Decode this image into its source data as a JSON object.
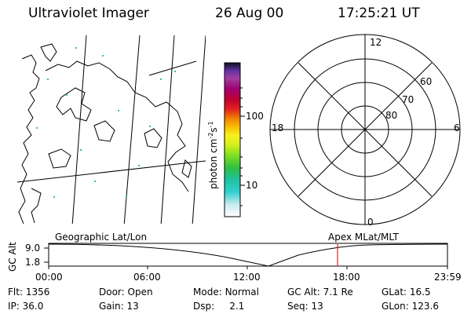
{
  "header": {
    "title": "Ultraviolet Imager",
    "date": "26 Aug 00",
    "time": "17:25:21 UT"
  },
  "color_scale": {
    "ticks": [
      "100",
      "10"
    ],
    "unit_main": "photon",
    "unit_exp1": "-2",
    "unit_exp2": "-1",
    "colors": [
      "#ffffff",
      "#30d0d0",
      "#30c040",
      "#f8f020",
      "#f08000",
      "#e02020",
      "#a00070",
      "#101020"
    ]
  },
  "polar": {
    "mlt_top": "12",
    "mlt_bottom": "0",
    "mlt_left": "18",
    "mlt_right": "6",
    "lat_labels": [
      "60",
      "70",
      "80"
    ]
  },
  "timeline": {
    "left_title": "Geographic Lat/Lon",
    "right_title": "Apex MLat/MLT",
    "y_label": "GC Alt",
    "y_ticks": [
      "9.0",
      "1.8"
    ],
    "x_ticks": [
      "00:00",
      "06:00",
      "12:00",
      "18:00",
      "23:59"
    ],
    "marker_color": "#e02020"
  },
  "status": {
    "filter": {
      "label": "Flt:",
      "value": "1356"
    },
    "door": {
      "label": "Door:",
      "value": "Open"
    },
    "mode": {
      "label": "Mode:",
      "value": "Normal"
    },
    "gc_alt": {
      "label": "GC Alt:",
      "value": "7.1 Re"
    },
    "glat": {
      "label": "GLat:",
      "value": "16.5"
    },
    "ip": {
      "label": "IP:",
      "value": "36.0"
    },
    "gain": {
      "label": "Gain:",
      "value": "13"
    },
    "dsp": {
      "label": "Dsp:",
      "value": "2.1"
    },
    "seq": {
      "label": "Seq:",
      "value": "13"
    },
    "glon": {
      "label": "GLon:",
      "value": "123.6"
    }
  }
}
